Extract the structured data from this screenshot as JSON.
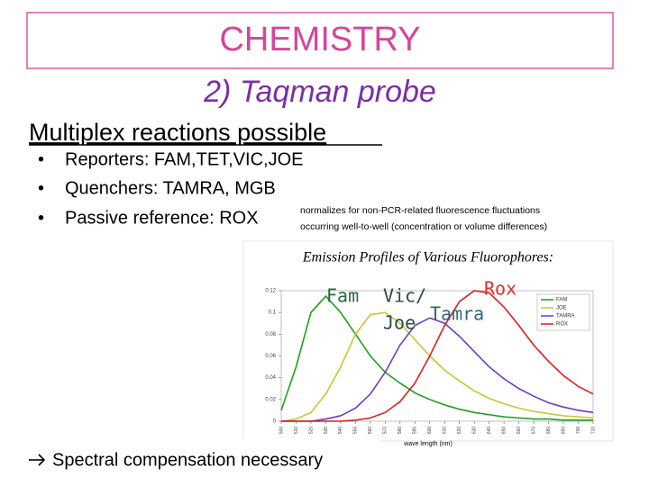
{
  "header": {
    "title": "CHEMISTRY",
    "subtitle": "2) Taqman probe"
  },
  "body": {
    "heading": "Multiplex reactions possible",
    "bullets": [
      "Reporters: FAM,TET,VIC,JOE",
      "Quenchers: TAMRA, MGB",
      "Passive reference: ROX"
    ],
    "note": [
      "normalizes for non-PCR-related fluorescence fluctuations",
      "occurring well-to-well (concentration or volume differences)"
    ],
    "conclusion": "Spectral compensation necessary"
  },
  "chart_data": {
    "type": "line",
    "title": "Emission Profiles of Various Fluorophores:",
    "x_label": "wave length (nm)",
    "x": [
      500,
      510,
      520,
      530,
      540,
      550,
      560,
      570,
      580,
      590,
      600,
      610,
      620,
      630,
      640,
      650,
      660,
      670,
      680,
      690,
      700,
      710
    ],
    "series": [
      {
        "name": "FAM",
        "color": "#1fa01f",
        "values": [
          0.01,
          0.05,
          0.1,
          0.115,
          0.1,
          0.08,
          0.06,
          0.045,
          0.035,
          0.026,
          0.02,
          0.015,
          0.011,
          0.008,
          0.006,
          0.004,
          0.003,
          0.002,
          0.002,
          0.001,
          0.001,
          0.001
        ]
      },
      {
        "name": "JOE",
        "color": "#c8c832",
        "values": [
          0,
          0.002,
          0.008,
          0.025,
          0.05,
          0.08,
          0.098,
          0.1,
          0.09,
          0.075,
          0.06,
          0.047,
          0.037,
          0.028,
          0.021,
          0.016,
          0.012,
          0.009,
          0.007,
          0.005,
          0.004,
          0.003
        ]
      },
      {
        "name": "TAMRA",
        "color": "#6a3cc8",
        "values": [
          0,
          0,
          0,
          0.002,
          0.005,
          0.012,
          0.025,
          0.045,
          0.07,
          0.088,
          0.095,
          0.09,
          0.078,
          0.064,
          0.05,
          0.039,
          0.03,
          0.023,
          0.017,
          0.013,
          0.01,
          0.008
        ]
      },
      {
        "name": "ROX",
        "color": "#e01e1e",
        "values": [
          0,
          0,
          0,
          0,
          0,
          0.001,
          0.003,
          0.008,
          0.018,
          0.035,
          0.06,
          0.088,
          0.11,
          0.12,
          0.118,
          0.105,
          0.088,
          0.07,
          0.055,
          0.042,
          0.032,
          0.025
        ]
      }
    ],
    "xlim": [
      500,
      710
    ],
    "ylim": [
      0,
      0.12
    ],
    "xticks": [
      500,
      510,
      520,
      530,
      540,
      550,
      560,
      570,
      580,
      590,
      600,
      610,
      620,
      630,
      640,
      650,
      660,
      670,
      680,
      690,
      700,
      710
    ],
    "yticks": [
      0,
      0.02,
      0.04,
      0.06,
      0.08,
      0.1,
      0.12
    ],
    "annotations": [
      {
        "text": "Fam",
        "color": "#2a6a3a"
      },
      {
        "text": "Vic/",
        "color": "#2a4a4a"
      },
      {
        "text": "Joe",
        "color": "#2a4a4a"
      },
      {
        "text": "Tamra",
        "color": "#2a6a7a"
      },
      {
        "text": "Rox",
        "color": "#e0302a"
      }
    ]
  }
}
